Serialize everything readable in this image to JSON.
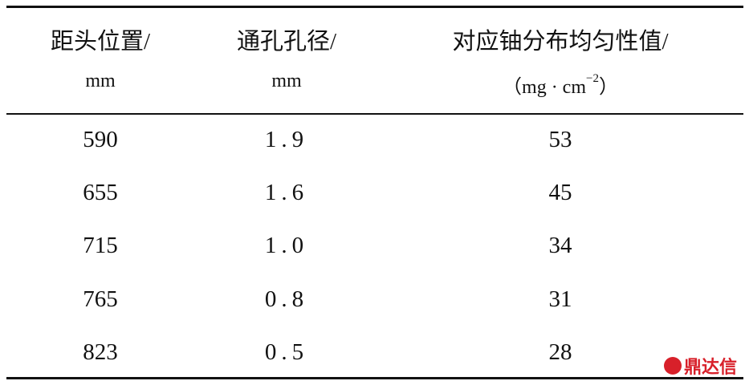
{
  "table": {
    "header": [
      {
        "title": "距头位置/",
        "unit": [
          "mm"
        ]
      },
      {
        "title": "通孔孔径/",
        "unit": [
          "mm"
        ]
      },
      {
        "title": "对应铀分布均匀性值/",
        "unit": [
          "（mg · cm",
          "−2",
          "）"
        ]
      }
    ],
    "rows": [
      [
        "590",
        "1.9",
        "53"
      ],
      [
        "655",
        "1.6",
        "45"
      ],
      [
        "715",
        "1.0",
        "34"
      ],
      [
        "765",
        "0.8",
        "31"
      ],
      [
        "823",
        "0.5",
        "28"
      ]
    ]
  },
  "watermark": {
    "text": "鼎达信"
  }
}
